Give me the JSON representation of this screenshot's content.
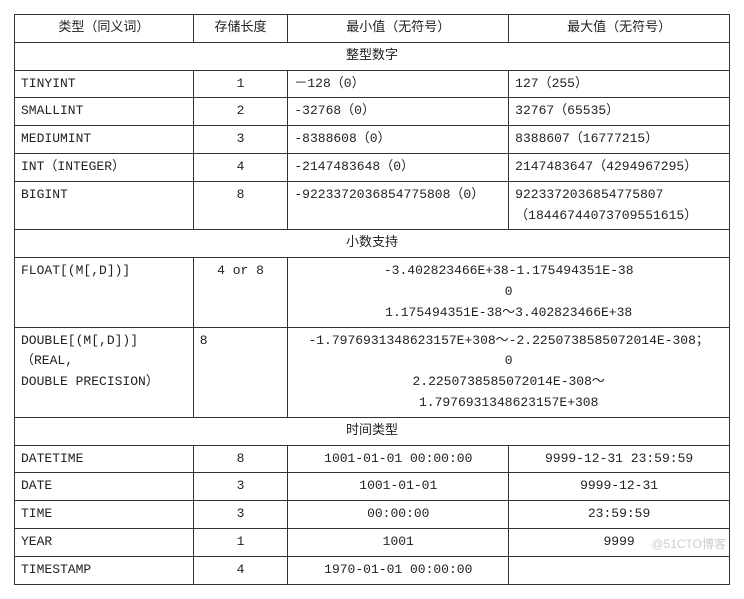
{
  "headers": {
    "c1": "类型（同义词）",
    "c2": "存储长度",
    "c3": "最小值（无符号）",
    "c4": "最大值（无符号）"
  },
  "sections": {
    "int": "整型数字",
    "dec": "小数支持",
    "time": "时间类型"
  },
  "int_rows": {
    "tinyint": {
      "type": "TINYINT",
      "len": "1",
      "min": "－128（0）",
      "max": "127（255）"
    },
    "smallint": {
      "type": "SMALLINT",
      "len": "2",
      "min": "-32768（0）",
      "max": "32767（65535）"
    },
    "mediumint": {
      "type": "MEDIUMINT",
      "len": "3",
      "min": "-8388608（0）",
      "max": "8388607（16777215）"
    },
    "int": {
      "type": "INT（INTEGER）",
      "len": "4",
      "min": "-2147483648（0）",
      "max": "2147483647（4294967295）"
    },
    "bigint": {
      "type": "BIGINT",
      "len": "8",
      "min": "-9223372036854775808（0）",
      "max": "9223372036854775807（18446744073709551615）"
    }
  },
  "dec_rows": {
    "float": {
      "type": "FLOAT[(M[,D])]",
      "len": "4 or 8",
      "range_l1": "-3.402823466E+38-1.175494351E-38",
      "range_l2": "0",
      "range_l3": "1.175494351E-38～3.402823466E+38"
    },
    "double": {
      "type": "DOUBLE[(M[,D])] （REAL,\nDOUBLE PRECISION）",
      "len": "8",
      "range_l1": "-1.7976931348623157E+308～-2.2250738585072014E-308；",
      "range_l2": "0",
      "range_l3": "2.2250738585072014E-308～",
      "range_l4": "1.7976931348623157E+308"
    }
  },
  "time_rows": {
    "datetime": {
      "type": "DATETIME",
      "len": "8",
      "min": "1001-01-01 00:00:00",
      "max": "9999-12-31 23:59:59"
    },
    "date": {
      "type": "DATE",
      "len": "3",
      "min": "1001-01-01",
      "max": "9999-12-31"
    },
    "time": {
      "type": "TIME",
      "len": "3",
      "min": "00:00:00",
      "max": "23:59:59"
    },
    "year": {
      "type": "YEAR",
      "len": "1",
      "min": "1001",
      "max": "9999"
    },
    "timestamp": {
      "type": "TIMESTAMP",
      "len": "4",
      "min": "1970-01-01 00:00:00",
      "max": ""
    }
  },
  "watermark": "@51CTO博客"
}
